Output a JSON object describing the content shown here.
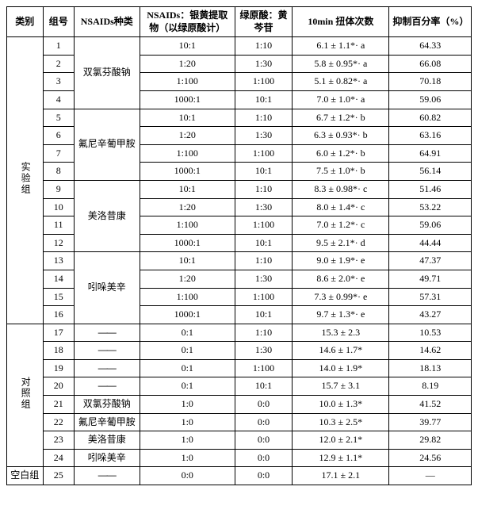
{
  "headers": {
    "category": "类别",
    "group": "组号",
    "kind": "NSAIDs种类",
    "ratio1": "NSAIDs：银黄提取物（以绿原酸计）",
    "ratio2": "绿原酸：黄芩苷",
    "writhing": "10min 扭体次数",
    "percent": "抑制百分率（%）"
  },
  "categories": {
    "exp": "实验组",
    "ctrl": "对照组",
    "blank": "空白组"
  },
  "nsaids": {
    "a": "双氯芬酸钠",
    "b": "氟尼辛葡甲胺",
    "c": "美洛昔康",
    "d": "吲哚美辛"
  },
  "dash": "——",
  "rows": [
    {
      "g": "1",
      "r1": "10:1",
      "r2": "1:10",
      "w": "6.1 ± 1.1*· a",
      "p": "64.33"
    },
    {
      "g": "2",
      "r1": "1:20",
      "r2": "1:30",
      "w": "5.8 ± 0.95*· a",
      "p": "66.08"
    },
    {
      "g": "3",
      "r1": "1:100",
      "r2": "1:100",
      "w": "5.1 ± 0.82*· a",
      "p": "70.18"
    },
    {
      "g": "4",
      "r1": "1000:1",
      "r2": "10:1",
      "w": "7.0 ± 1.0*· a",
      "p": "59.06"
    },
    {
      "g": "5",
      "r1": "10:1",
      "r2": "1:10",
      "w": "6.7 ± 1.2*· b",
      "p": "60.82"
    },
    {
      "g": "6",
      "r1": "1:20",
      "r2": "1:30",
      "w": "6.3 ± 0.93*· b",
      "p": "63.16"
    },
    {
      "g": "7",
      "r1": "1:100",
      "r2": "1:100",
      "w": "6.0 ± 1.2*· b",
      "p": "64.91"
    },
    {
      "g": "8",
      "r1": "1000:1",
      "r2": "10:1",
      "w": "7.5 ± 1.0*· b",
      "p": "56.14"
    },
    {
      "g": "9",
      "r1": "10:1",
      "r2": "1:10",
      "w": "8.3 ± 0.98*· c",
      "p": "51.46"
    },
    {
      "g": "10",
      "r1": "1:20",
      "r2": "1:30",
      "w": "8.0 ± 1.4*· c",
      "p": "53.22"
    },
    {
      "g": "11",
      "r1": "1:100",
      "r2": "1:100",
      "w": "7.0 ± 1.2*· c",
      "p": "59.06"
    },
    {
      "g": "12",
      "r1": "1000:1",
      "r2": "10:1",
      "w": "9.5 ± 2.1*· d",
      "p": "44.44"
    },
    {
      "g": "13",
      "r1": "10:1",
      "r2": "1:10",
      "w": "9.0 ± 1.9*· e",
      "p": "47.37"
    },
    {
      "g": "14",
      "r1": "1:20",
      "r2": "1:30",
      "w": "8.6 ± 2.0*· e",
      "p": "49.71"
    },
    {
      "g": "15",
      "r1": "1:100",
      "r2": "1:100",
      "w": "7.3 ± 0.99*· e",
      "p": "57.31"
    },
    {
      "g": "16",
      "r1": "1000:1",
      "r2": "10:1",
      "w": "9.7 ± 1.3*· e",
      "p": "43.27"
    },
    {
      "g": "17",
      "r1": "0:1",
      "r2": "1:10",
      "w": "15.3 ± 2.3",
      "p": "10.53"
    },
    {
      "g": "18",
      "r1": "0:1",
      "r2": "1:30",
      "w": "14.6 ± 1.7*",
      "p": "14.62"
    },
    {
      "g": "19",
      "r1": "0:1",
      "r2": "1:100",
      "w": "14.0 ± 1.9*",
      "p": "18.13"
    },
    {
      "g": "20",
      "r1": "0:1",
      "r2": "10:1",
      "w": "15.7 ± 3.1",
      "p": "8.19"
    },
    {
      "g": "21",
      "r1": "1:0",
      "r2": "0:0",
      "w": "10.0 ± 1.3*",
      "p": "41.52"
    },
    {
      "g": "22",
      "r1": "1:0",
      "r2": "0:0",
      "w": "10.3 ± 2.5*",
      "p": "39.77"
    },
    {
      "g": "23",
      "r1": "1:0",
      "r2": "0:0",
      "w": "12.0 ± 2.1*",
      "p": "29.82"
    },
    {
      "g": "24",
      "r1": "1:0",
      "r2": "0:0",
      "w": "12.9 ± 1.1*",
      "p": "24.56"
    },
    {
      "g": "25",
      "r1": "0:0",
      "r2": "0:0",
      "w": "17.1 ± 2.1",
      "p": "—"
    }
  ]
}
